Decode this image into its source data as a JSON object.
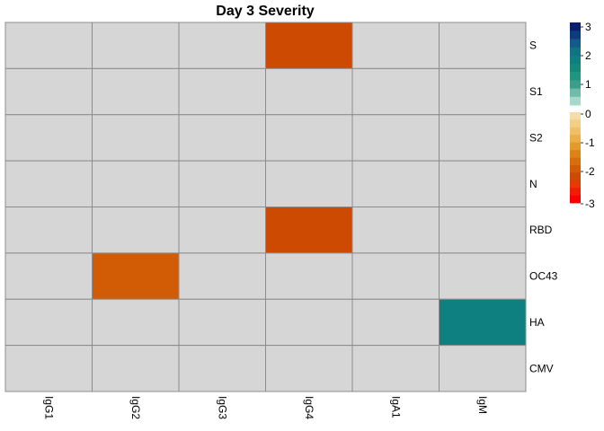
{
  "chart_data": {
    "type": "heatmap",
    "title": "Day 3 Severity",
    "columns": [
      "IgG1",
      "IgG2",
      "IgG3",
      "IgG4",
      "IgA1",
      "IgM"
    ],
    "rows": [
      "S",
      "S1",
      "S2",
      "N",
      "RBD",
      "OC43",
      "HA",
      "CMV"
    ],
    "values": [
      [
        null,
        null,
        null,
        -2.2,
        null,
        null
      ],
      [
        null,
        null,
        null,
        null,
        null,
        null
      ],
      [
        null,
        null,
        null,
        null,
        null,
        null
      ],
      [
        null,
        null,
        null,
        null,
        null,
        null
      ],
      [
        null,
        null,
        null,
        -2.0,
        null,
        null
      ],
      [
        null,
        -1.8,
        null,
        null,
        null,
        null
      ],
      [
        null,
        null,
        null,
        null,
        null,
        1.6
      ],
      [
        null,
        null,
        null,
        null,
        null,
        null
      ]
    ],
    "missing_color": "#d6d6d6",
    "grid_color": "#8c8c8c",
    "colorbar": {
      "range": [
        -3,
        3
      ],
      "ticks": [
        "3",
        "2",
        "1",
        "0",
        "-1",
        "-2",
        "-3"
      ],
      "positive_colors": [
        "#0b1d6e",
        "#0e3a7e",
        "#13598a",
        "#137286",
        "#0f8080",
        "#168a7a",
        "#229482",
        "#3a9e88",
        "#6fbcab",
        "#a6d8cc"
      ],
      "negative_colors": [
        "#f6dca8",
        "#f3cf86",
        "#f0c068",
        "#ebae48",
        "#e49b2e",
        "#dd8418",
        "#d86f0c",
        "#d25b06",
        "#cd4a03",
        "#e53a02",
        "#f21d00",
        "#fb0000"
      ]
    }
  }
}
